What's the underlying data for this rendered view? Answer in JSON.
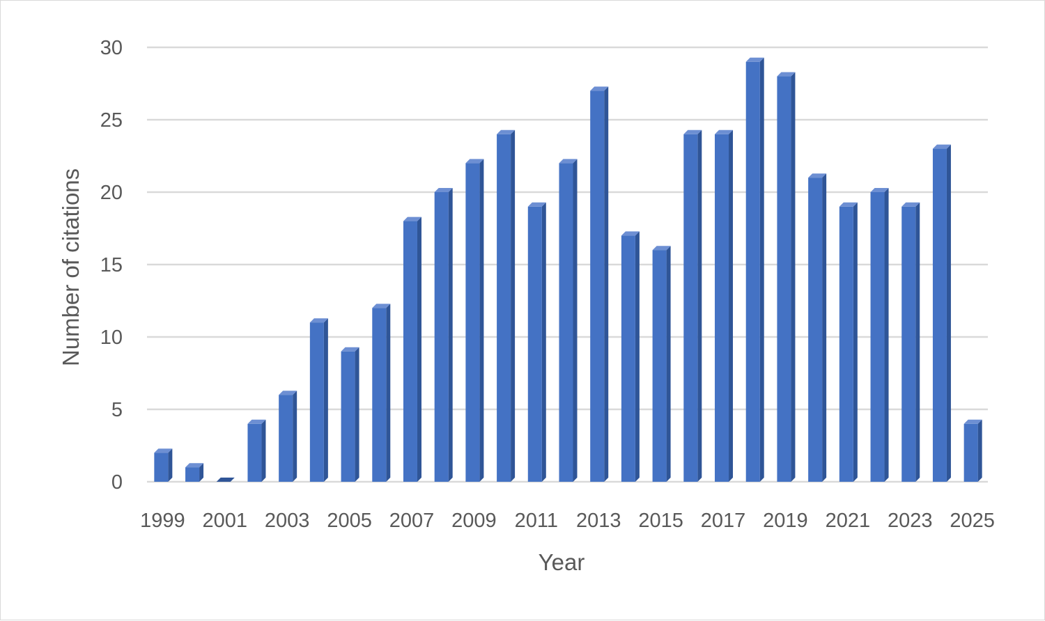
{
  "chart_data": {
    "type": "bar",
    "style": "3d-column",
    "x": [
      1999,
      2000,
      2001,
      2002,
      2003,
      2004,
      2005,
      2006,
      2007,
      2008,
      2009,
      2010,
      2011,
      2012,
      2013,
      2014,
      2015,
      2016,
      2017,
      2018,
      2019,
      2020,
      2021,
      2022,
      2023,
      2024,
      2025
    ],
    "values": [
      2,
      1,
      0,
      4,
      6,
      11,
      9,
      12,
      18,
      20,
      22,
      24,
      19,
      22,
      27,
      17,
      16,
      24,
      24,
      29,
      28,
      21,
      19,
      20,
      19,
      23,
      4
    ],
    "x_tick_labels": [
      "1999",
      "2001",
      "2003",
      "2005",
      "2007",
      "2009",
      "2011",
      "2013",
      "2015",
      "2017",
      "2019",
      "2021",
      "2023",
      "2025"
    ],
    "y_ticks": [
      0,
      5,
      10,
      15,
      20,
      25,
      30
    ],
    "xlabel": "Year",
    "ylabel": "Number of citations",
    "ylim": [
      0,
      30
    ],
    "grid": true,
    "legend": false,
    "colors": {
      "bar_front": "#4472c4",
      "bar_side": "#2f5597",
      "bar_top": "#6d8fd3",
      "grid": "#d9d9d9",
      "text": "#595959"
    }
  }
}
